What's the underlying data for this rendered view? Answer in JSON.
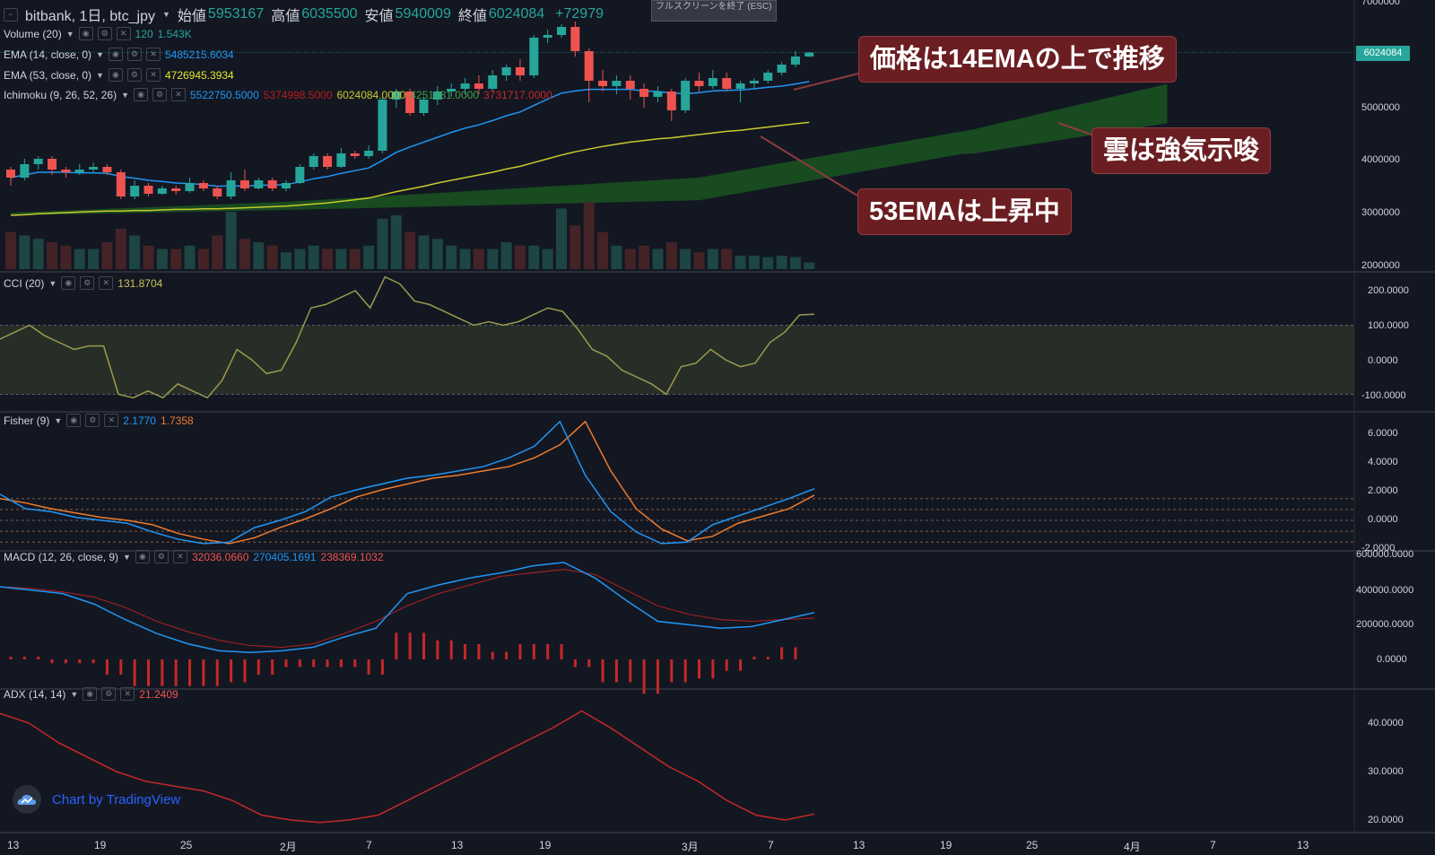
{
  "header": {
    "symbol": "bitbank, 1日, btc_jpy",
    "open_label": "始値",
    "open": "5953167",
    "high_label": "高値",
    "high": "6035500",
    "low_label": "安値",
    "low": "5940009",
    "close_label": "終値",
    "close": "6024084",
    "change": "+72979",
    "tooltip_text": "フルスクリーンを終了 (ESC)"
  },
  "legends": {
    "volume": {
      "label": "Volume (20)",
      "v1": "120",
      "v2": "1.543K"
    },
    "ema14": {
      "label": "EMA (14, close, 0)",
      "v1": "5485215.6034"
    },
    "ema53": {
      "label": "EMA (53, close, 0)",
      "v1": "4726945.3934"
    },
    "ichimoku": {
      "label": "Ichimoku (9, 26, 52, 26)",
      "v1": "5522750.5000",
      "v2": "5374998.5000",
      "v3": "6024084.0000",
      "v4": "4251881.0000",
      "v5": "3731717.0000"
    },
    "cci": {
      "label": "CCI (20)",
      "v1": "131.8704"
    },
    "fisher": {
      "label": "Fisher (9)",
      "v1": "2.1770",
      "v2": "1.7358"
    },
    "macd": {
      "label": "MACD (12, 26, close, 9)",
      "v1": "32036.0660",
      "v2": "270405.1691",
      "v3": "238369.1032"
    },
    "adx": {
      "label": "ADX (14, 14)",
      "v1": "21.2409"
    }
  },
  "annotations": {
    "a1": "価格は14EMAの上で推移",
    "a2": "雲は強気示唆",
    "a3": "53EMAは上昇中"
  },
  "price_axis": [
    "7000000",
    "6000000",
    "5000000",
    "4000000",
    "3000000",
    "2000000"
  ],
  "current_price_tag": "6024084",
  "cci_axis": [
    "200.0000",
    "100.0000",
    "0.0000",
    "-100.0000"
  ],
  "fisher_axis": [
    "6.0000",
    "4.0000",
    "2.0000",
    "0.0000",
    "-2.0000"
  ],
  "macd_axis": [
    "600000.0000",
    "400000.0000",
    "200000.0000",
    "0.0000"
  ],
  "adx_axis": [
    "40.0000",
    "30.0000",
    "20.0000"
  ],
  "time_axis": [
    "13",
    "19",
    "25",
    "2月",
    "7",
    "13",
    "19",
    "3月",
    "7",
    "13",
    "19",
    "25",
    "4月",
    "7",
    "13"
  ],
  "watermark": "Chart by TradingView",
  "colors": {
    "up": "#26a69a",
    "down": "#ef5350",
    "ema14": "#2196f3",
    "ema53": "#c9c92e",
    "cloud": "#1b5e20",
    "cci": "#9c9a4c",
    "fisher1": "#2196f3",
    "fisher2": "#ef7b2b",
    "macd": "#2196f3",
    "signal": "#b22222",
    "adx": "#c62828"
  },
  "chart_data": {
    "type": "candlestick",
    "ylim": [
      2000000,
      7000000
    ],
    "candles": [
      [
        3850000,
        3700000,
        3900000,
        3550000
      ],
      [
        3700000,
        3950000,
        4050000,
        3650000
      ],
      [
        3950000,
        4050000,
        4100000,
        3850000
      ],
      [
        4050000,
        3850000,
        4100000,
        3750000
      ],
      [
        3850000,
        3800000,
        3900000,
        3700000
      ],
      [
        3800000,
        3850000,
        3950000,
        3750000
      ],
      [
        3850000,
        3900000,
        3980000,
        3780000
      ],
      [
        3900000,
        3800000,
        3950000,
        3750000
      ],
      [
        3800000,
        3350000,
        3850000,
        3300000
      ],
      [
        3350000,
        3550000,
        3650000,
        3300000
      ],
      [
        3550000,
        3400000,
        3600000,
        3350000
      ],
      [
        3400000,
        3500000,
        3550000,
        3380000
      ],
      [
        3500000,
        3450000,
        3550000,
        3380000
      ],
      [
        3450000,
        3600000,
        3700000,
        3420000
      ],
      [
        3600000,
        3500000,
        3650000,
        3450000
      ],
      [
        3500000,
        3350000,
        3550000,
        3300000
      ],
      [
        3350000,
        3650000,
        3800000,
        3300000
      ],
      [
        3650000,
        3500000,
        3850000,
        3450000
      ],
      [
        3500000,
        3650000,
        3700000,
        3480000
      ],
      [
        3650000,
        3500000,
        3700000,
        3450000
      ],
      [
        3500000,
        3600000,
        3650000,
        3450000
      ],
      [
        3600000,
        3900000,
        3950000,
        3580000
      ],
      [
        3900000,
        4100000,
        4150000,
        3850000
      ],
      [
        4100000,
        3900000,
        4150000,
        3850000
      ],
      [
        3900000,
        4150000,
        4250000,
        3880000
      ],
      [
        4150000,
        4100000,
        4200000,
        4050000
      ],
      [
        4100000,
        4200000,
        4300000,
        4050000
      ],
      [
        4200000,
        5150000,
        5200000,
        4150000
      ],
      [
        5150000,
        5300000,
        5350000,
        5000000
      ],
      [
        5300000,
        4900000,
        5350000,
        4850000
      ],
      [
        4900000,
        5150000,
        5200000,
        4850000
      ],
      [
        5150000,
        5300000,
        5400000,
        5050000
      ],
      [
        5300000,
        5350000,
        5450000,
        5200000
      ],
      [
        5350000,
        5450000,
        5550000,
        5250000
      ],
      [
        5450000,
        5350000,
        5600000,
        5250000
      ],
      [
        5350000,
        5600000,
        5700000,
        5300000
      ],
      [
        5600000,
        5750000,
        5800000,
        5500000
      ],
      [
        5750000,
        5600000,
        5900000,
        5500000
      ],
      [
        5600000,
        6300000,
        6350000,
        5550000
      ],
      [
        6300000,
        6350000,
        6450000,
        6200000
      ],
      [
        6350000,
        6500000,
        6550000,
        6300000
      ],
      [
        6500000,
        6050000,
        6600000,
        5950000
      ],
      [
        6050000,
        5500000,
        6100000,
        5100000
      ],
      [
        5500000,
        5400000,
        5700000,
        5300000
      ],
      [
        5400000,
        5500000,
        5600000,
        5250000
      ],
      [
        5500000,
        5350000,
        5600000,
        5150000
      ],
      [
        5350000,
        5200000,
        5450000,
        5000000
      ],
      [
        5200000,
        5300000,
        5400000,
        5100000
      ],
      [
        5300000,
        4950000,
        5350000,
        4750000
      ],
      [
        4950000,
        5500000,
        5550000,
        4900000
      ],
      [
        5500000,
        5400000,
        5650000,
        5300000
      ],
      [
        5400000,
        5550000,
        5700000,
        5350000
      ],
      [
        5550000,
        5350000,
        5650000,
        5300000
      ],
      [
        5350000,
        5450000,
        5500000,
        5100000
      ],
      [
        5450000,
        5500000,
        5550000,
        5350000
      ],
      [
        5500000,
        5650000,
        5700000,
        5450000
      ],
      [
        5650000,
        5800000,
        5850000,
        5600000
      ],
      [
        5800000,
        5950000,
        6050000,
        5750000
      ],
      [
        5950000,
        6024084,
        6035500,
        5940009
      ]
    ],
    "volume": [
      0.55,
      0.5,
      0.45,
      0.4,
      0.35,
      0.3,
      0.3,
      0.4,
      0.6,
      0.5,
      0.35,
      0.3,
      0.3,
      0.35,
      0.3,
      0.5,
      0.85,
      0.45,
      0.4,
      0.35,
      0.25,
      0.3,
      0.35,
      0.3,
      0.3,
      0.3,
      0.35,
      0.75,
      0.8,
      0.55,
      0.5,
      0.45,
      0.35,
      0.3,
      0.3,
      0.3,
      0.4,
      0.35,
      0.35,
      0.3,
      0.9,
      0.65,
      1.0,
      0.55,
      0.35,
      0.3,
      0.35,
      0.3,
      0.4,
      0.3,
      0.25,
      0.3,
      0.3,
      0.2,
      0.2,
      0.18,
      0.2,
      0.18,
      0.1
    ],
    "ema14": [
      3700000,
      3750000,
      3800000,
      3800000,
      3800000,
      3790000,
      3790000,
      3780000,
      3720000,
      3690000,
      3650000,
      3630000,
      3600000,
      3590000,
      3570000,
      3540000,
      3550000,
      3540000,
      3560000,
      3560000,
      3570000,
      3620000,
      3680000,
      3720000,
      3780000,
      3830000,
      3880000,
      4020000,
      4170000,
      4270000,
      4360000,
      4450000,
      4540000,
      4620000,
      4680000,
      4760000,
      4850000,
      4920000,
      5040000,
      5160000,
      5270000,
      5310000,
      5340000,
      5340000,
      5340000,
      5340000,
      5310000,
      5300000,
      5270000,
      5260000,
      5280000,
      5310000,
      5320000,
      5330000,
      5350000,
      5380000,
      5400000,
      5440000,
      5485215
    ],
    "ema53": [
      3000000,
      3010000,
      3030000,
      3040000,
      3050000,
      3060000,
      3070000,
      3080000,
      3080000,
      3090000,
      3090000,
      3100000,
      3110000,
      3110000,
      3120000,
      3120000,
      3130000,
      3140000,
      3150000,
      3160000,
      3170000,
      3190000,
      3210000,
      3230000,
      3260000,
      3290000,
      3320000,
      3380000,
      3440000,
      3490000,
      3540000,
      3600000,
      3650000,
      3700000,
      3750000,
      3800000,
      3860000,
      3910000,
      3980000,
      4050000,
      4120000,
      4180000,
      4230000,
      4280000,
      4320000,
      4360000,
      4390000,
      4420000,
      4440000,
      4470000,
      4500000,
      4530000,
      4560000,
      4580000,
      4610000,
      4640000,
      4670000,
      4700000,
      4726945
    ],
    "cci": [
      60,
      80,
      100,
      70,
      50,
      30,
      40,
      40,
      -100,
      -110,
      -90,
      -110,
      -70,
      -90,
      -110,
      -60,
      30,
      0,
      -40,
      -30,
      50,
      150,
      160,
      180,
      200,
      150,
      240,
      220,
      170,
      160,
      140,
      120,
      100,
      110,
      100,
      110,
      130,
      150,
      140,
      90,
      30,
      10,
      -30,
      -50,
      -70,
      -100,
      -20,
      -10,
      30,
      0,
      -20,
      -10,
      50,
      80,
      130,
      131.87
    ],
    "fisher": [
      [
        1.8,
        1.5
      ],
      [
        0.8,
        1.2
      ],
      [
        0.6,
        0.8
      ],
      [
        0.2,
        0.5
      ],
      [
        0.0,
        0.2
      ],
      [
        -0.2,
        0.0
      ],
      [
        -0.8,
        -0.3
      ],
      [
        -1.3,
        -0.9
      ],
      [
        -1.6,
        -1.3
      ],
      [
        -1.5,
        -1.6
      ],
      [
        -0.5,
        -1.2
      ],
      [
        0.0,
        -0.5
      ],
      [
        0.6,
        0.1
      ],
      [
        1.6,
        0.8
      ],
      [
        2.1,
        1.6
      ],
      [
        2.5,
        2.1
      ],
      [
        2.9,
        2.5
      ],
      [
        3.1,
        2.9
      ],
      [
        3.4,
        3.1
      ],
      [
        3.7,
        3.4
      ],
      [
        4.3,
        3.7
      ],
      [
        5.1,
        4.3
      ],
      [
        6.8,
        5.2
      ],
      [
        3.1,
        6.8
      ],
      [
        0.6,
        3.4
      ],
      [
        -0.8,
        0.8
      ],
      [
        -1.6,
        -0.6
      ],
      [
        -1.5,
        -1.4
      ],
      [
        -0.3,
        -1.1
      ],
      [
        0.3,
        -0.2
      ],
      [
        0.9,
        0.3
      ],
      [
        1.5,
        0.8
      ],
      [
        2.17,
        1.73
      ]
    ],
    "macd": {
      "ylim": [
        -100000,
        600000
      ],
      "macd": [
        420000,
        400000,
        380000,
        320000,
        230000,
        150000,
        90000,
        50000,
        40000,
        50000,
        70000,
        130000,
        180000,
        380000,
        430000,
        470000,
        500000,
        540000,
        560000,
        470000,
        340000,
        220000,
        200000,
        180000,
        190000,
        230000,
        270405
      ],
      "signal": [
        420000,
        410000,
        390000,
        360000,
        300000,
        220000,
        160000,
        110000,
        80000,
        70000,
        90000,
        150000,
        220000,
        310000,
        380000,
        430000,
        480000,
        500000,
        520000,
        490000,
        400000,
        310000,
        260000,
        230000,
        220000,
        230000,
        238369
      ]
    },
    "adx": {
      "ylim": [
        18,
        44
      ],
      "values": [
        42,
        40,
        36,
        33,
        30,
        28,
        27,
        26,
        24,
        21,
        20,
        19.5,
        20,
        21,
        24,
        27,
        30,
        33,
        36,
        39,
        42.5,
        39,
        35,
        31,
        28,
        24,
        21,
        20,
        21.24
      ]
    },
    "xlabel": "",
    "ylabel": ""
  }
}
